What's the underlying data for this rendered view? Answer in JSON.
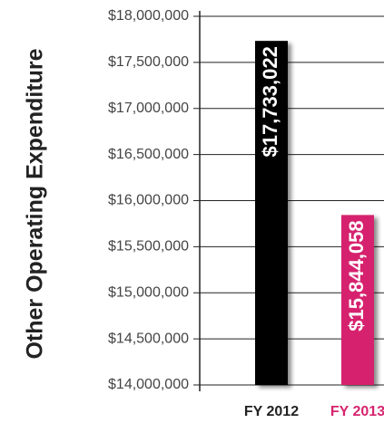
{
  "chart_data": {
    "type": "bar",
    "ylabel": "Other Operating Expenditure",
    "categories": [
      "FY 2012",
      "FY 2013"
    ],
    "values": [
      17733022,
      15844058
    ],
    "value_labels": [
      "$17,733,022",
      "$15,844,058"
    ],
    "colors": [
      "#000000",
      "#d6246e"
    ],
    "ylim": [
      14000000,
      18000000
    ],
    "yticks": [
      {
        "value": 14000000,
        "label": "$14,000,000"
      },
      {
        "value": 14500000,
        "label": "$14,500,000"
      },
      {
        "value": 15000000,
        "label": "$15,000,000"
      },
      {
        "value": 15500000,
        "label": "$15,500,000"
      },
      {
        "value": 16000000,
        "label": "$16,000,000"
      },
      {
        "value": 16500000,
        "label": "$16,500,000"
      },
      {
        "value": 17000000,
        "label": "$17,000,000"
      },
      {
        "value": 17500000,
        "label": "$17,500,000"
      },
      {
        "value": 18000000,
        "label": "$18,000,000"
      }
    ],
    "grid": true
  }
}
